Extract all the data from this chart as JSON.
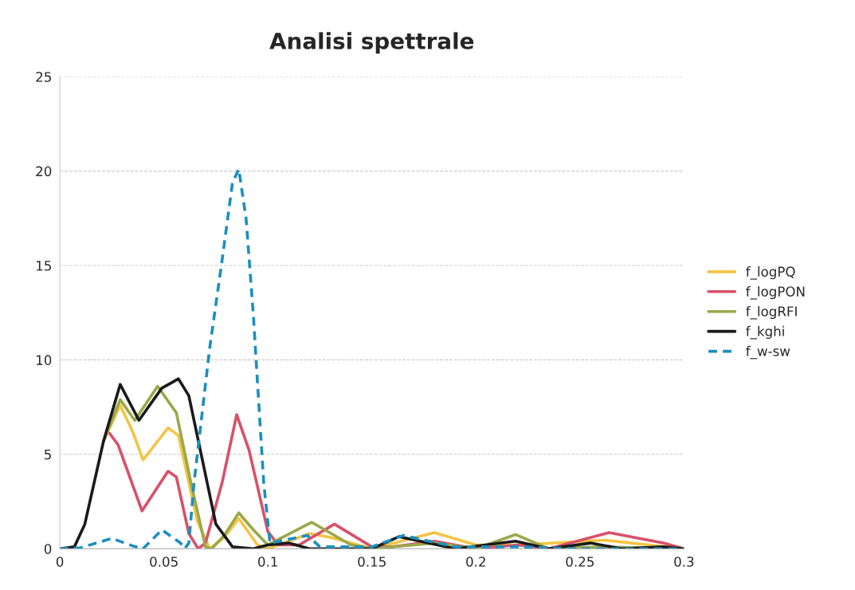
{
  "chart_data": {
    "type": "line",
    "title": "Analisi spettrale",
    "xlim": [
      0,
      0.3
    ],
    "xticks": [
      0,
      {
        "value": 0.05,
        "label": "0.05"
      },
      {
        "value": 0.1,
        "label": "0.1"
      },
      {
        "value": 0.15,
        "label": "0.15"
      },
      {
        "value": 0.2,
        "label": "0.2"
      },
      {
        "value": 0.25,
        "label": "0.25"
      },
      {
        "value": 0.3,
        "label": "0.3"
      }
    ],
    "ylim": [
      0,
      25
    ],
    "yticks": [
      0,
      5,
      10,
      15,
      20,
      25
    ],
    "grid": "y",
    "legend": "right",
    "marker": "none",
    "series": [
      {
        "name": "f_logPQ",
        "color": "#f4c444",
        "line_style": "solid",
        "x": [
          0.021,
          0.029,
          0.035,
          0.04,
          0.052,
          0.057,
          0.066,
          0.072,
          0.079,
          0.086,
          0.095,
          0.1,
          0.12,
          0.13,
          0.15,
          0.18,
          0.2,
          0.22,
          0.262,
          0.3
        ],
        "values": [
          5.7,
          7.6,
          6.2,
          4.7,
          6.4,
          6.0,
          1.5,
          0,
          0.6,
          1.6,
          0.2,
          0,
          0.8,
          0.6,
          0,
          0.85,
          0.2,
          0.2,
          0.45,
          0
        ]
      },
      {
        "name": "f_logPON",
        "color": "#d9506a",
        "line_style": "solid",
        "x": [
          0.024,
          0.028,
          0.0395,
          0.052,
          0.056,
          0.062,
          0.0665,
          0.07,
          0.078,
          0.085,
          0.091,
          0.1,
          0.105,
          0.115,
          0.132,
          0.15,
          0.16,
          0.18,
          0.2,
          0.22,
          0.235,
          0.264,
          0.29,
          0.3
        ],
        "values": [
          6.1,
          5.5,
          2.0,
          4.1,
          3.8,
          0.8,
          0,
          0.3,
          3.5,
          7.1,
          5.2,
          0.9,
          0.2,
          0.2,
          1.3,
          0.1,
          0.1,
          0.4,
          0,
          0.2,
          0,
          0.85,
          0.3,
          0
        ]
      },
      {
        "name": "f_logRFI",
        "color": "#9aa84a",
        "line_style": "solid",
        "x": [
          0.021,
          0.029,
          0.036,
          0.047,
          0.056,
          0.063,
          0.07,
          0.073,
          0.079,
          0.086,
          0.093,
          0.1,
          0.121,
          0.14,
          0.15,
          0.18,
          0.2,
          0.219,
          0.235,
          0.26,
          0.3
        ],
        "values": [
          5.7,
          7.9,
          6.8,
          8.6,
          7.2,
          3.5,
          0.1,
          0,
          0.7,
          1.9,
          1.0,
          0.2,
          1.4,
          0.2,
          0,
          0.3,
          0,
          0.75,
          0,
          0.1,
          0
        ]
      },
      {
        "name": "f_kghi",
        "color": "#1a1a1a",
        "line_style": "solid",
        "x": [
          0,
          0.007,
          0.012,
          0.021,
          0.029,
          0.038,
          0.049,
          0.057,
          0.062,
          0.0685,
          0.075,
          0.083,
          0.093,
          0.1,
          0.11,
          0.12,
          0.15,
          0.163,
          0.19,
          0.219,
          0.235,
          0.255,
          0.27,
          0.29,
          0.3
        ],
        "values": [
          0,
          0.1,
          1.3,
          5.7,
          8.7,
          6.8,
          8.5,
          9.0,
          8.1,
          4.7,
          1.3,
          0.1,
          0,
          0.2,
          0.3,
          0,
          0,
          0.64,
          0,
          0.4,
          0,
          0.3,
          0,
          0.1,
          0
        ]
      },
      {
        "name": "f_w-sw",
        "color": "#1a8fc0",
        "line_style": "dashed",
        "x": [
          0,
          0.01,
          0.025,
          0.035,
          0.04,
          0.049,
          0.058,
          0.06,
          0.062,
          0.0645,
          0.072,
          0.078,
          0.083,
          0.086,
          0.0895,
          0.093,
          0.0955,
          0.098,
          0.101,
          0.11,
          0.119,
          0.125,
          0.15,
          0.165,
          0.19,
          0.22,
          0.25,
          0.3
        ],
        "values": [
          0,
          0.05,
          0.55,
          0.15,
          0,
          1.0,
          0.3,
          0,
          0.3,
          3.5,
          10.6,
          15.3,
          19.4,
          20.1,
          17.5,
          12.4,
          7.9,
          3.5,
          0.3,
          0.5,
          0.7,
          0.1,
          0.1,
          0.7,
          0.1,
          0.1,
          0,
          0
        ]
      }
    ]
  }
}
